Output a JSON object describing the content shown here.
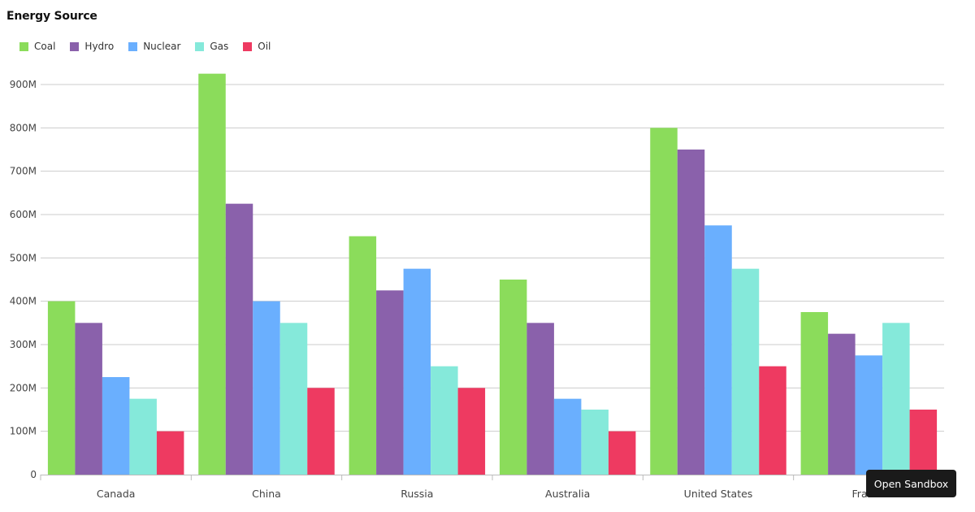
{
  "chart_data": {
    "type": "bar",
    "title": "Energy Source",
    "categories": [
      "Canada",
      "China",
      "Russia",
      "Australia",
      "United States",
      "France"
    ],
    "series": [
      {
        "name": "Coal",
        "color": "#8bdc5b",
        "values": [
          400,
          925,
          550,
          450,
          800,
          375
        ]
      },
      {
        "name": "Hydro",
        "color": "#8a61ab",
        "values": [
          350,
          625,
          425,
          350,
          750,
          325
        ]
      },
      {
        "name": "Nuclear",
        "color": "#6aaffe",
        "values": [
          225,
          400,
          475,
          175,
          575,
          275
        ]
      },
      {
        "name": "Gas",
        "color": "#85e9da",
        "values": [
          175,
          350,
          250,
          150,
          475,
          350
        ]
      },
      {
        "name": "Oil",
        "color": "#ee3a61",
        "values": [
          100,
          200,
          200,
          100,
          250,
          150
        ]
      }
    ],
    "ylim": [
      0,
      900
    ],
    "yticks": [
      "0",
      "100M",
      "200M",
      "300M",
      "400M",
      "500M",
      "600M",
      "700M",
      "800M",
      "900M"
    ],
    "grid": true,
    "legend": "top-left"
  },
  "ui": {
    "sandbox_label": "Open Sandbox"
  }
}
